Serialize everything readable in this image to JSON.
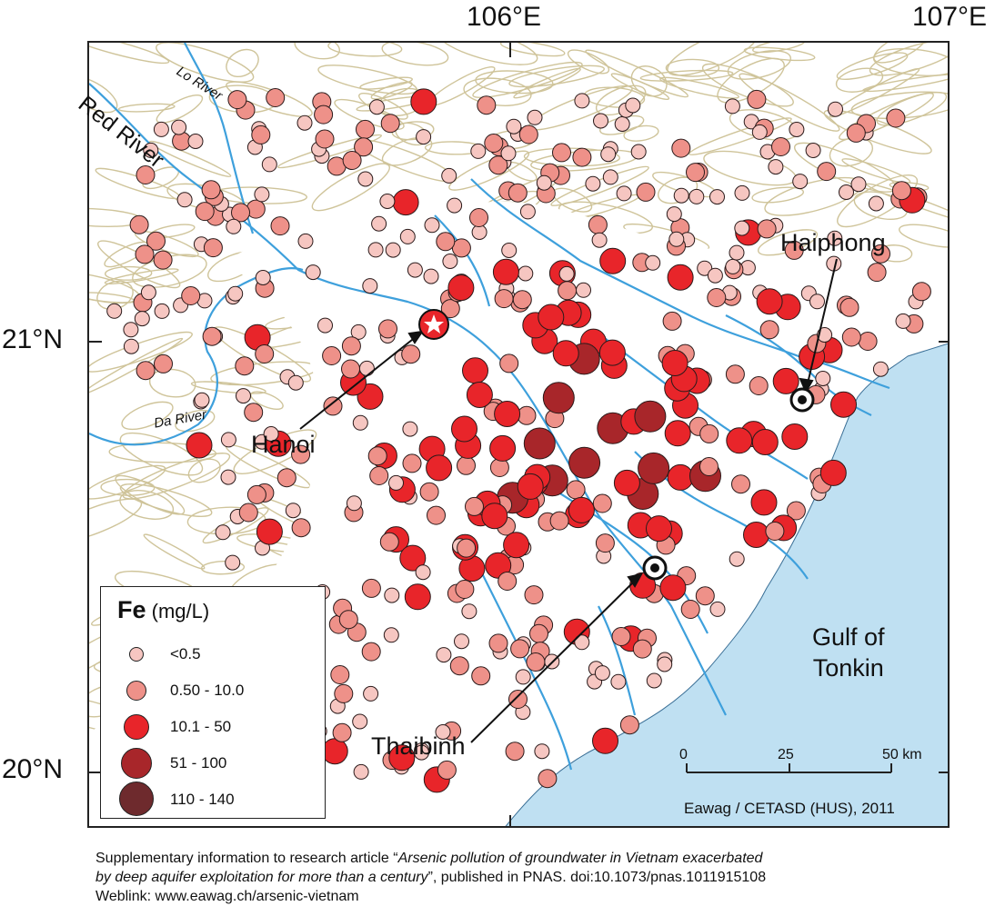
{
  "axes": {
    "lon_labels": [
      "106°E",
      "107°E"
    ],
    "lat_labels": [
      "21°N",
      "20°N"
    ]
  },
  "cities": {
    "hanoi": "Hanoi",
    "haiphong": "Haiphong",
    "thaibinh": "Thaibinh"
  },
  "rivers": {
    "red": "Red River",
    "lo": "Lo River",
    "da": "Da River"
  },
  "water": {
    "gulf_line1": "Gulf of",
    "gulf_line2": "Tonkin"
  },
  "scale_bar": {
    "ticks": [
      "0",
      "25",
      "50 km"
    ]
  },
  "credit": "Eawag / CETASD (HUS), 2011",
  "legend": {
    "title": "Fe",
    "unit": "(mg/L)",
    "classes": [
      {
        "label": "<0.5",
        "color": "#f6c6c1"
      },
      {
        "label": "0.50 - 10.0",
        "color": "#ee9189"
      },
      {
        "label": "10.1 - 50",
        "color": "#e8252a"
      },
      {
        "label": "51 - 100",
        "color": "#a8262a"
      },
      {
        "label": "110 - 140",
        "color": "#6e2a2d"
      }
    ]
  },
  "colors": {
    "sea": "#bfe0f2",
    "river": "#3ea0dc",
    "terrain": "#cfc49a"
  },
  "caption": {
    "line1_prefix": "Supplementary information to research article “",
    "line1_title": "Arsenic pollution of groundwater in Vietnam exacerbated",
    "line2_title": "by deep aquifer exploitation for more than a century",
    "line2_suffix": "”, published in PNAS. doi:10.1073/pnas.1011915108",
    "line3": "Weblink: www.eawag.ch/arsenic-vietnam"
  }
}
